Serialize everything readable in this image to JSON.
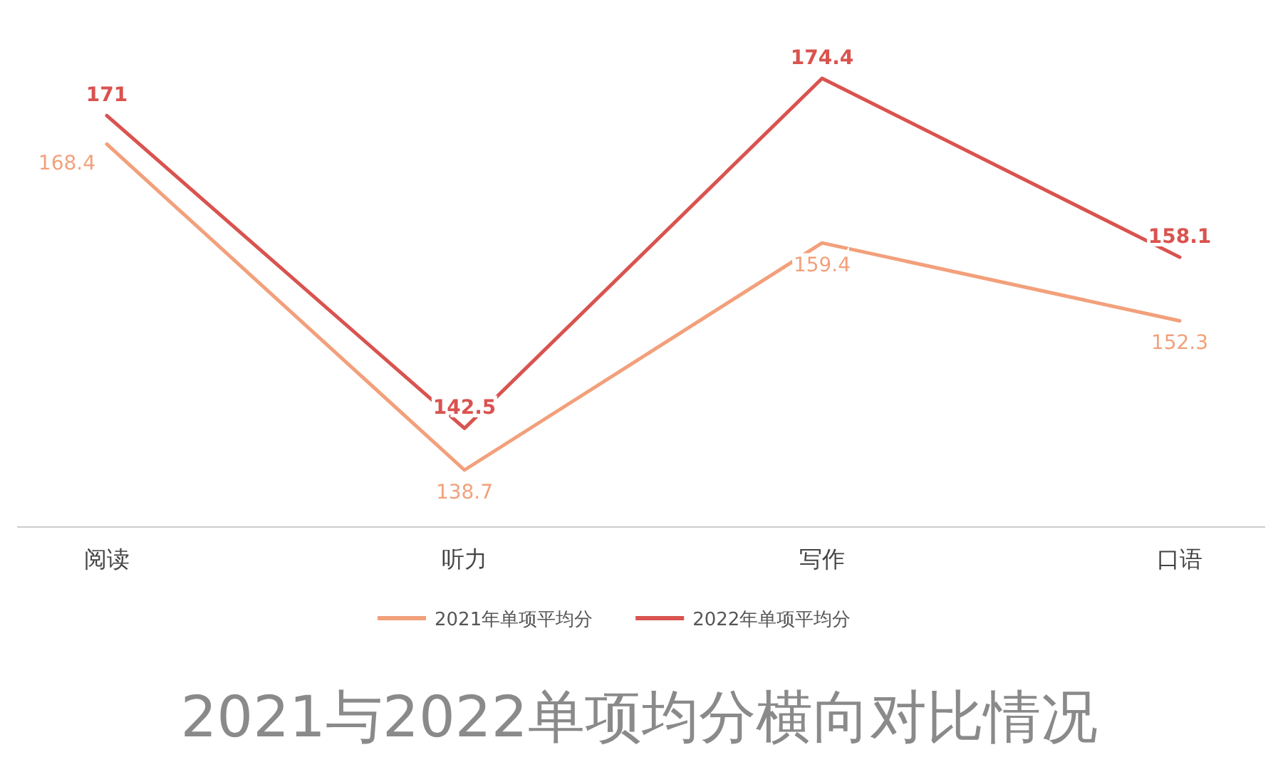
{
  "chart_data": {
    "type": "line",
    "title": "2021与2022单项均分横向对比情况",
    "categories": [
      "阅读",
      "听力",
      "写作",
      "口语"
    ],
    "series": [
      {
        "name": "2021年单项平均分",
        "color": "#f2a07b",
        "values": [
          168.4,
          138.7,
          159.4,
          152.3
        ]
      },
      {
        "name": "2022年单项平均分",
        "color": "#d9534f",
        "values": [
          171,
          142.5,
          174.4,
          158.1
        ]
      }
    ],
    "data_labels": true,
    "legend": "bottom",
    "marker": "none",
    "line_style": "solid"
  }
}
